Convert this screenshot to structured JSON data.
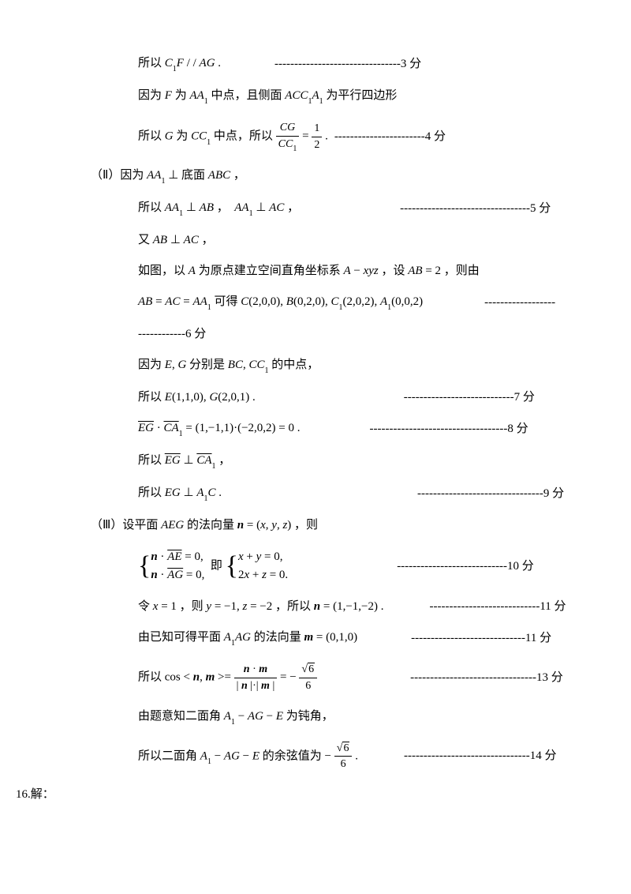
{
  "lines": [
    {
      "indent": "indent1",
      "content": "所以 <span class='ital'>C</span><span class='sub'>1</span><span class='ital'>F</span> / / <span class='ital'>AG</span> .",
      "spacer": 60,
      "score": "--------------------------------3 分"
    },
    {
      "indent": "indent1",
      "content": "因为 <span class='ital'>F</span> 为 <span class='ital'>AA</span><span class='sub'>1</span> 中点，且侧面 <span class='ital'>ACC</span><span class='sub'>1</span><span class='ital'>A</span><span class='sub'>1</span> 为平行四边形",
      "spacer": 0,
      "score": ""
    },
    {
      "indent": "indent1",
      "content": "所以 <span class='ital'>G</span> 为 <span class='ital'>CC</span><span class='sub'>1</span> 中点，所以 <span class='frac'><span class='num'><span class='ital'>CG</span></span><span class='den'><span class='ital'>CC</span><span class='sub'>1</span></span></span> = <span class='frac'><span class='num'>1</span><span class='den'>2</span></span> .",
      "spacer": 0,
      "score": "-----------------------4 分"
    },
    {
      "indent": "indent-part",
      "content": "（Ⅱ）因为 <span class='ital'>AA</span><span class='sub'>1</span> ⊥ 底面 <span class='ital'>ABC</span> ，",
      "spacer": 0,
      "score": ""
    },
    {
      "indent": "indent1",
      "content": "所以 <span class='ital'>AA</span><span class='sub'>1</span> ⊥ <span class='ital'>AB</span> ，&nbsp; <span class='ital'>AA</span><span class='sub'>1</span> ⊥ <span class='ital'>AC</span> ，",
      "spacer": 120,
      "score": "---------------------------------5 分"
    },
    {
      "indent": "indent1",
      "content": "又 <span class='ital'>AB</span> ⊥ <span class='ital'>AC</span> ，",
      "spacer": 0,
      "score": ""
    },
    {
      "indent": "indent1",
      "content": "如图，以 <span class='ital'>A</span> 为原点建立空间直角坐标系 <span class='ital'>A</span> − <span class='ital'>xyz</span> ，设 <span class='ital'>AB</span> = 2 ，则由",
      "spacer": 0,
      "score": ""
    },
    {
      "indent": "indent1",
      "content": "<span class='ital'>AB</span> = <span class='ital'>AC</span> = <span class='ital'>AA</span><span class='sub'>1</span> 可得 <span class='ital'>C</span>(2,0,0), <span class='ital'>B</span>(0,2,0), <span class='ital'>C</span><span class='sub'>1</span>(2,0,2), <span class='ital'>A</span><span class='sub'>1</span>(0,0,2)",
      "spacer": 70,
      "score": "------------------"
    },
    {
      "indent": "indent1",
      "content": "------------6 分",
      "spacer": 0,
      "score": ""
    },
    {
      "indent": "indent1",
      "content": "因为 <span class='ital'>E</span>, <span class='ital'>G</span> 分别是 <span class='ital'>BC</span>, <span class='ital'>CC</span><span class='sub'>1</span> 的中点，",
      "spacer": 0,
      "score": ""
    },
    {
      "indent": "indent1",
      "content": "所以 <span class='ital'>E</span>(1,1,0), <span class='ital'>G</span>(2,0,1) .",
      "spacer": 180,
      "score": "----------------------------7 分"
    },
    {
      "indent": "indent1",
      "content": "<span class='vec ital'>EG</span> · <span class='vec ital'>CA</span><span class='sub'>1</span> = (1,−1,1)·(−2,0,2) = 0 .",
      "spacer": 80,
      "score": "-----------------------------------8 分"
    },
    {
      "indent": "indent1",
      "content": "所以 <span class='vec ital'>EG</span> ⊥ <span class='vec ital'>CA</span><span class='sub'>1</span> ，",
      "spacer": 0,
      "score": ""
    },
    {
      "indent": "indent1",
      "content": "所以 <span class='ital'>EG</span> ⊥ <span class='ital'>A</span><span class='sub'>1</span><span class='ital'>C</span> .",
      "spacer": 240,
      "score": "--------------------------------9 分"
    },
    {
      "indent": "indent-part",
      "content": "（Ⅲ）设平面 <span class='ital'>AEG</span> 的法向量 <span class='bital'>n</span> = (<span class='ital'>x</span>, <span class='ital'>y</span>, <span class='ital'>z</span>) ，则",
      "spacer": 0,
      "score": ""
    },
    {
      "indent": "indent1",
      "content": "<span class='brace-sys'><span class='brace'>{</span><span class='rows'><span class='r'><span class='bital'>n</span> · <span class='vec ital'>AE</span> = 0,</span><span class='r'><span class='bital'>n</span> · <span class='vec ital'>AG</span> = 0,</span></span></span> &nbsp;即 <span class='brace-sys'><span class='brace'>{</span><span class='rows'><span class='r'><span class='ital'>x</span> + <span class='ital'>y</span> = 0,</span><span class='r'>2<span class='ital'>x</span> + <span class='ital'>z</span> = 0.</span></span></span>",
      "spacer": 130,
      "score": "----------------------------10 分"
    },
    {
      "indent": "indent1",
      "content": "令 <span class='ital'>x</span> = 1 ，则 <span class='ital'>y</span> = −1, <span class='ital'>z</span> = −2 ，所以 <span class='bital'>n</span> = (1,−1,−2) .",
      "spacer": 50,
      "score": "----------------------------11 分"
    },
    {
      "indent": "indent1",
      "content": "由已知可得平面 <span class='ital'>A</span><span class='sub'>1</span><span class='ital'>AG</span> 的法向量 <span class='bital'>m</span> = (0,1,0)",
      "spacer": 60,
      "score": "-----------------------------11 分"
    },
    {
      "indent": "indent1",
      "content": "所以 cos &lt; <span class='bital'>n</span>, <span class='bital'>m</span> &gt;= <span class='frac'><span class='num'><span class='bital'>n</span> · <span class='bital'>m</span></span><span class='den'>| <span class='bital'>n</span> |·| <span class='bital'>m</span> |</span></span> = − <span class='frac'><span class='num'><span class='sqrt'><span class='rad'>6</span></span></span><span class='den'>6</span></span>",
      "spacer": 110,
      "score": "--------------------------------13 分"
    },
    {
      "indent": "indent1",
      "content": "由题意知二面角 <span class='ital'>A</span><span class='sub'>1</span> − <span class='ital'>AG</span> − <span class='ital'>E</span> 为钝角，",
      "spacer": 0,
      "score": ""
    },
    {
      "indent": "indent1",
      "content": "所以二面角 <span class='ital'>A</span><span class='sub'>1</span> − <span class='ital'>AG</span> − <span class='ital'>E</span> 的余弦值为 − <span class='frac'><span class='num'><span class='sqrt'><span class='rad'>6</span></span></span><span class='den'>6</span></span> .",
      "spacer": 50,
      "score": "--------------------------------14 分"
    }
  ],
  "footer": "16.解："
}
